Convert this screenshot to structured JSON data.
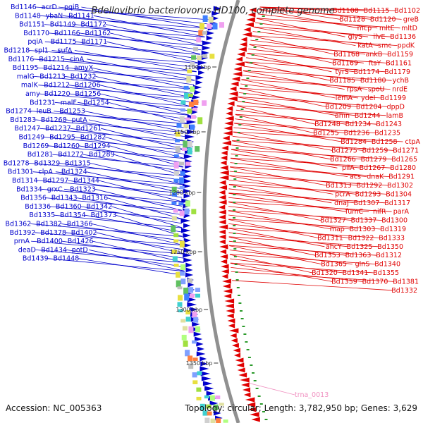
{
  "title": "Bdellovibrio bacteriovorus HD100, complete genome",
  "footer": {
    "accession": "Accession: NC_005363",
    "topology": "Topology: circular; Length: 3,782,950 bp; Genes: 3,629"
  },
  "colors": {
    "forward": "#0000cc",
    "reverse": "#e00000",
    "rna": "#f090c0",
    "backbone": "#909090"
  },
  "ticks": [
    {
      "label": "1100 kbp"
    },
    {
      "label": "1150 kbp"
    },
    {
      "label": "1200 kbp"
    },
    {
      "label": "1250 kbp"
    },
    {
      "label": "1300 kbp"
    },
    {
      "label": "1350 kbp"
    }
  ],
  "left_labels": [
    "Bd1146",
    "acrD",
    "pqiB",
    "Bd1148",
    "ybaN",
    "Bd1141",
    "Bd1151",
    "Bd1149",
    "Bd1172",
    "Bd1170",
    "Bd1166",
    "Bd1162",
    "pqiA",
    "Bd1175",
    "Bd1171",
    "Bd1218",
    "spl1",
    "sufA",
    "Bd1176",
    "Bd1215",
    "cinA",
    "Bd1195",
    "Bd1214",
    "amyX",
    "malG",
    "Bd1213",
    "Bd1232",
    "malK",
    "Bd1212",
    "Bd1206",
    "amy",
    "Bd1220",
    "Bd1256",
    "Bd1231",
    "malF",
    "Bd1254",
    "Bd1274",
    "leuB",
    "Bd1253",
    "Bd1283",
    "Bd1268",
    "putA",
    "Bd1247",
    "Bd1237",
    "Bd1261",
    "Bd1249",
    "Bd1295",
    "Bd1282",
    "Bd1269",
    "Bd1260",
    "Bd1294",
    "Bd1281",
    "Bd1272",
    "Bd1289",
    "Bd1278",
    "Bd1329",
    "Bd1315",
    "Bd1301",
    "clpA",
    "Bd1324",
    "Bd1314",
    "Bd1297",
    "Bd1344",
    "Bd1334",
    "grxC",
    "Bd1323",
    "Bd1356",
    "Bd1343",
    "Bd1316",
    "Bd1336",
    "Bd1360",
    "Bd1342",
    "Bd1335",
    "Bd1354",
    "Bd1373",
    "Bd1362",
    "Bd1382",
    "Bd1366",
    "Bd1392",
    "Bd1378",
    "Bd1402",
    "prnA",
    "Bd1400",
    "Bd1426",
    "deaD",
    "Bd1434",
    "potD",
    "Bd1439",
    "Bd1448"
  ],
  "right_labels": [
    "Bd1102",
    "Bd1115",
    "Bd1108",
    "greB",
    "Bd1120",
    "Bd1128",
    "mltD",
    "mltE",
    "mcp",
    "Bd1136",
    "ilvE",
    "glyS",
    "ppdK",
    "smc",
    "katA",
    "Bd1159",
    "ankB",
    "Bd1168",
    "Bd1161",
    "ftsY",
    "Bd1169",
    "Bd1179",
    "Bd1174",
    "tyrS",
    "ychB",
    "Bd1180",
    "Bd1185",
    "nrdE",
    "spoU",
    "rpsA",
    "Bd1199",
    "ydeI",
    "lemA",
    "dppD",
    "Bd1204",
    "Bd1209",
    "lamB",
    "Bd1244",
    "amn",
    "Bd1243",
    "Bd1234",
    "Bd1248",
    "Bd1235",
    "Bd1236",
    "Bd1255",
    "ctpA",
    "Bd1258",
    "Bd1284",
    "Bd1271",
    "Bd1259",
    "Bd1275",
    "Bd1265",
    "Bd1279",
    "Bd1266",
    "Bd1280",
    "Bd1267",
    "pilA",
    "Bd1291",
    "dnaK",
    "acs",
    "Bd1302",
    "Bd1292",
    "Bd1313",
    "Bd1304",
    "Bd1293",
    "pcrA",
    "Bd1317",
    "Bd1307",
    "dnaJ",
    "parA",
    "nifR",
    "fumC",
    "Bd1300",
    "Bd1337",
    "Bd1327",
    "Bd1319",
    "Bd1303",
    "map",
    "Bd1333",
    "Bd1322",
    "Bd1311",
    "Bd1350",
    "Bd1325",
    "ahcY",
    "Bd1312",
    "Bd1363",
    "Bd1353",
    "Bd1340",
    "glnS",
    "Bd1365",
    "Bd1355",
    "Bd1341",
    "Bd1320",
    "Bd1381",
    "Bd1370",
    "Bd1359",
    "Bd1332"
  ],
  "rna_label": "trna_0013"
}
